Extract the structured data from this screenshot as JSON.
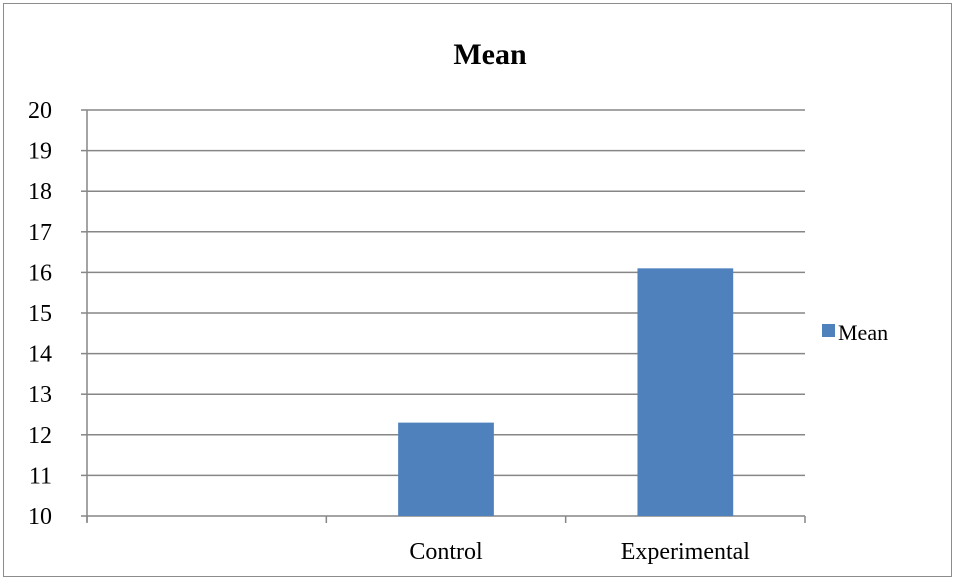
{
  "chart_data": {
    "type": "bar",
    "title": "Mean",
    "categories": [
      "",
      "Control",
      "Experimental"
    ],
    "series": [
      {
        "name": "Mean",
        "values": [
          null,
          12.3,
          16.1
        ]
      }
    ],
    "xlabel": "",
    "ylabel": "",
    "ylim": [
      10,
      20
    ],
    "yticks": [
      10,
      11,
      12,
      13,
      14,
      15,
      16,
      17,
      18,
      19,
      20
    ],
    "grid": true,
    "legend": "right",
    "colors": {
      "bar": "#4f81bd",
      "grid": "#868686",
      "axis": "#868686",
      "text": "#000000"
    }
  }
}
